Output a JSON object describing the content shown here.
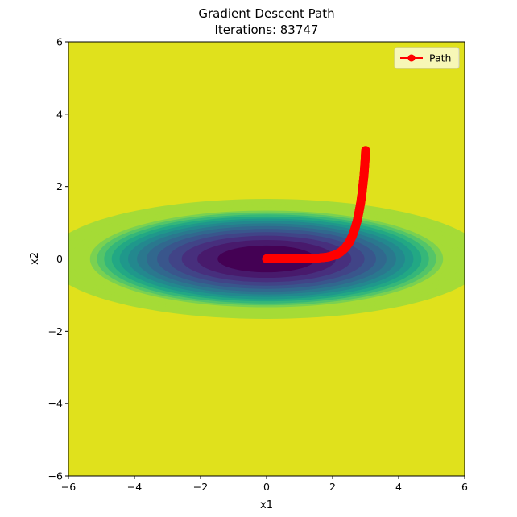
{
  "chart_data": {
    "type": "contour",
    "title": "Gradient Descent Path",
    "subtitle": "Iterations: 83747",
    "xlabel": "x1",
    "ylabel": "x2",
    "xlim": [
      -6,
      6
    ],
    "ylim": [
      -6,
      6
    ],
    "xticks": [
      -6,
      -4,
      -2,
      0,
      2,
      4,
      6
    ],
    "yticks": [
      -6,
      -4,
      -2,
      0,
      2,
      4,
      6
    ],
    "tick_labels_x": [
      "−6",
      "−4",
      "−2",
      "0",
      "2",
      "4",
      "6"
    ],
    "tick_labels_y": [
      "−6",
      "−4",
      "−2",
      "0",
      "2",
      "4",
      "6"
    ],
    "grid": false,
    "legend": {
      "placement": "top-right",
      "entries": [
        "Path"
      ]
    },
    "contour": {
      "function": "x1^2 + 16*x2^2",
      "levels": [
        0,
        2.2,
        4.4,
        6.6,
        8.8,
        11,
        13.2,
        15.4,
        17.6,
        19.8,
        22,
        24.2,
        26.4,
        28.6,
        30.8,
        33,
        35.2,
        37.4,
        39.6,
        41.8,
        44
      ],
      "colors": [
        "#440154",
        "#481a6c",
        "#472f7d",
        "#414487",
        "#39568c",
        "#31688e",
        "#2a788e",
        "#23888e",
        "#1f988b",
        "#22a884",
        "#35b779",
        "#54c568",
        "#7ad151",
        "#a5db36",
        "#a5db36",
        "#a5db36",
        "#a5db36",
        "#a5db36",
        "#a5db36",
        "#a5db36"
      ],
      "background_color": "#e0e11c"
    },
    "series": [
      {
        "name": "Path",
        "color": "#ff0000",
        "marker": "o",
        "x": [
          3.0,
          2.99,
          2.97,
          2.95,
          2.92,
          2.89,
          2.85,
          2.8,
          2.75,
          2.68,
          2.6,
          2.5,
          2.38,
          2.23,
          2.05,
          1.85,
          1.6,
          1.3,
          1.0,
          0.7,
          0.45,
          0.25,
          0.1,
          0.03,
          0.0
        ],
        "y": [
          3.0,
          2.8,
          2.55,
          2.3,
          2.05,
          1.8,
          1.55,
          1.3,
          1.07,
          0.85,
          0.64,
          0.45,
          0.3,
          0.18,
          0.1,
          0.05,
          0.025,
          0.01,
          0.005,
          0.002,
          0.001,
          0.0,
          0.0,
          0.0,
          0.0
        ]
      }
    ]
  }
}
